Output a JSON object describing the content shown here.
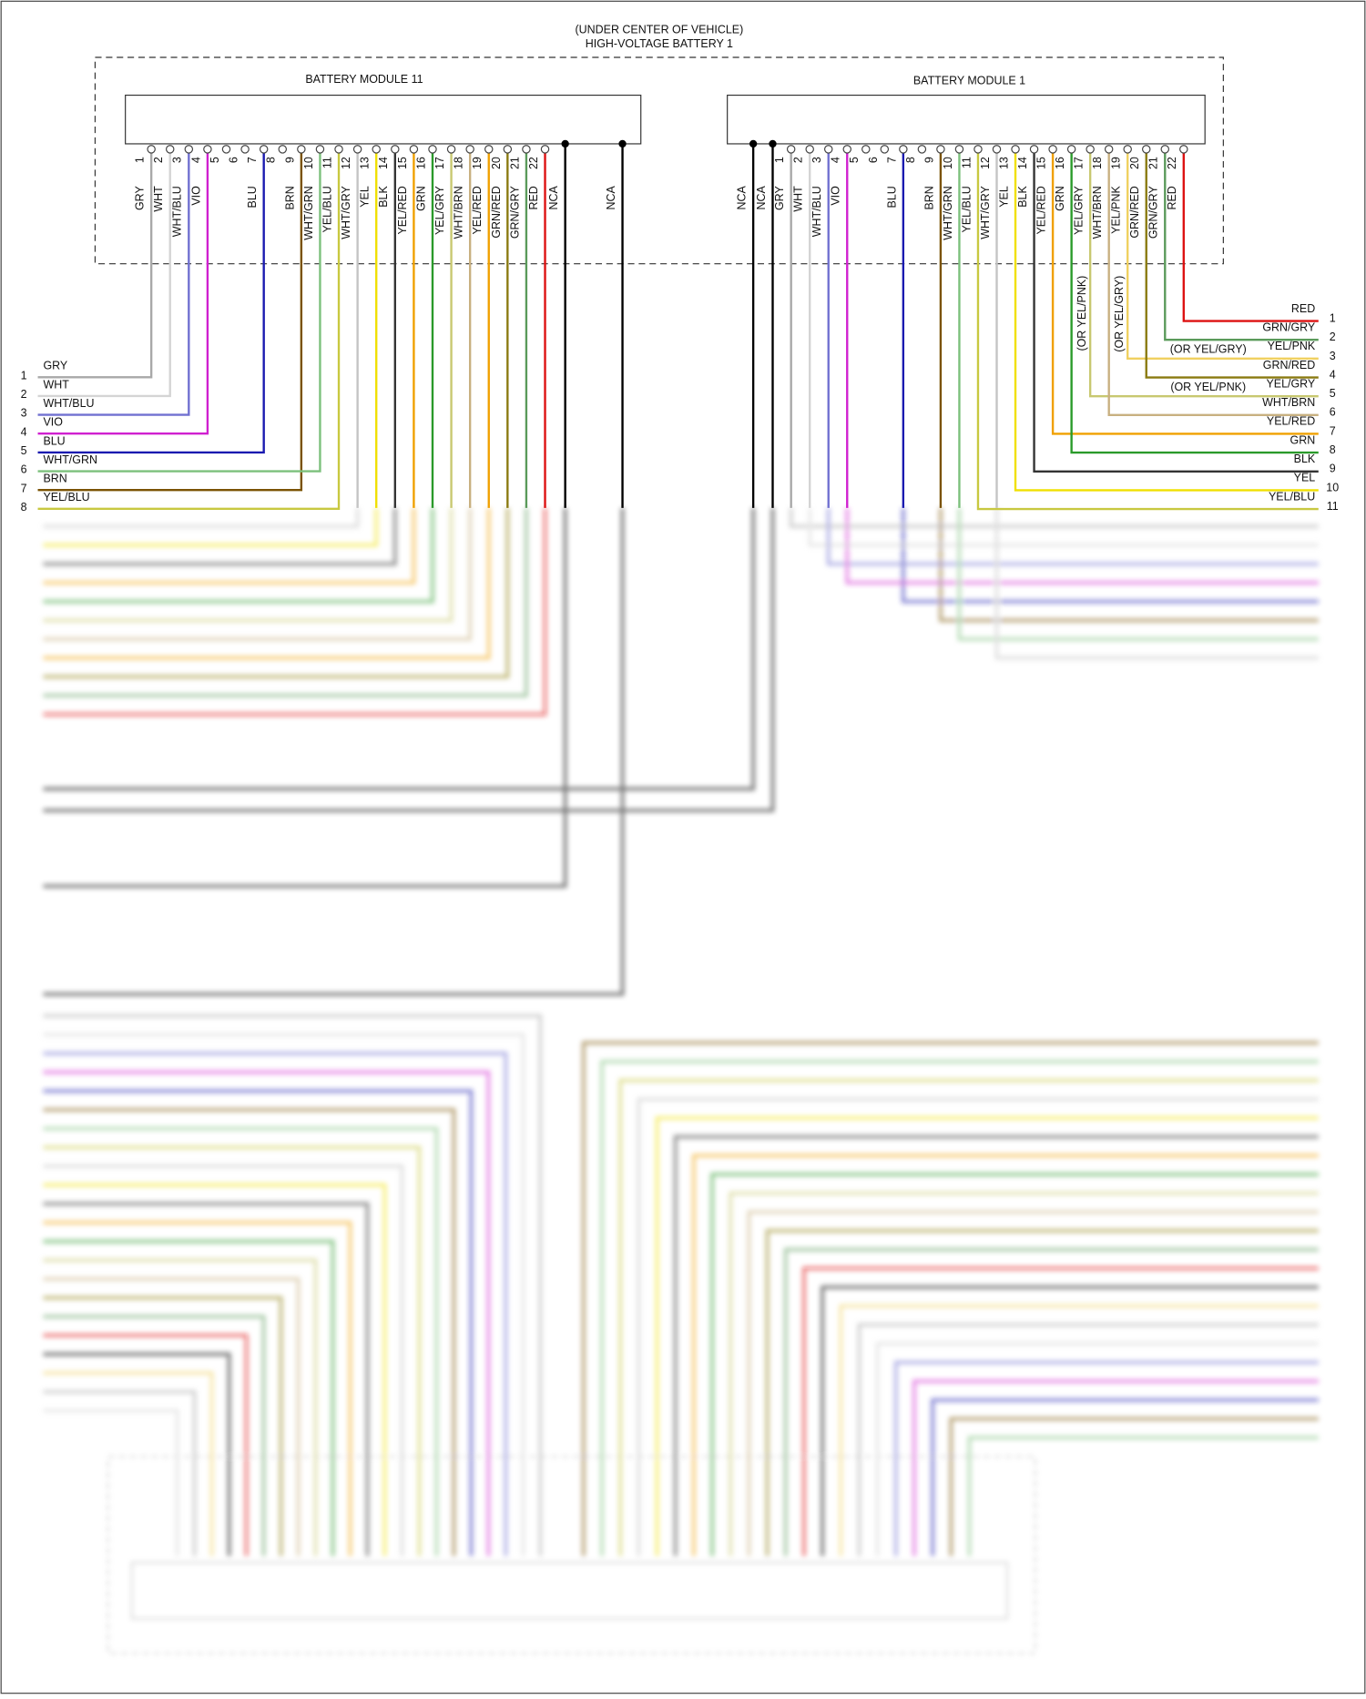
{
  "header": {
    "location": "(UNDER CENTER OF VEHICLE)",
    "title": "HIGH-VOLTAGE BATTERY 1"
  },
  "modules": [
    {
      "title": "BATTERY MODULE 11",
      "pins": [
        {
          "pin": "1",
          "wire": "GRY"
        },
        {
          "pin": "2",
          "wire": "WHT"
        },
        {
          "pin": "3",
          "wire": "WHT/BLU"
        },
        {
          "pin": "4",
          "wire": "VIO"
        },
        {
          "pin": "5"
        },
        {
          "pin": "6"
        },
        {
          "pin": "7",
          "wire": "BLU"
        },
        {
          "pin": "8"
        },
        {
          "pin": "9",
          "wire": "BRN"
        },
        {
          "pin": "10",
          "wire": "WHT/GRN"
        },
        {
          "pin": "11",
          "wire": "YEL/BLU"
        },
        {
          "pin": "12",
          "wire": "WHT/GRY"
        },
        {
          "pin": "13",
          "wire": "YEL"
        },
        {
          "pin": "14",
          "wire": "BLK"
        },
        {
          "pin": "15",
          "wire": "YEL/RED"
        },
        {
          "pin": "16",
          "wire": "GRN"
        },
        {
          "pin": "17",
          "wire": "YEL/GRY"
        },
        {
          "pin": "18",
          "wire": "WHT/BRN"
        },
        {
          "pin": "19",
          "wire": "YEL/RED"
        },
        {
          "pin": "20",
          "wire": "GRN/RED"
        },
        {
          "pin": "21",
          "wire": "GRN/GRY"
        },
        {
          "pin": "22",
          "wire": "RED"
        },
        {
          "wire": "NCA"
        },
        {
          "wire": "NCA"
        }
      ]
    },
    {
      "title": "BATTERY MODULE 1",
      "pins": [
        {
          "wire": "NCA"
        },
        {
          "wire": "NCA"
        },
        {
          "pin": "1",
          "wire": "GRY"
        },
        {
          "pin": "2",
          "wire": "WHT"
        },
        {
          "pin": "3",
          "wire": "WHT/BLU"
        },
        {
          "pin": "4",
          "wire": "VIO"
        },
        {
          "pin": "5"
        },
        {
          "pin": "6"
        },
        {
          "pin": "7",
          "wire": "BLU"
        },
        {
          "pin": "8"
        },
        {
          "pin": "9",
          "wire": "BRN"
        },
        {
          "pin": "10",
          "wire": "WHT/GRN"
        },
        {
          "pin": "11",
          "wire": "YEL/BLU"
        },
        {
          "pin": "12",
          "wire": "WHT/GRY"
        },
        {
          "pin": "13",
          "wire": "YEL"
        },
        {
          "pin": "14",
          "wire": "BLK"
        },
        {
          "pin": "15",
          "wire": "YEL/RED"
        },
        {
          "pin": "16",
          "wire": "GRN"
        },
        {
          "pin": "17",
          "wire": "YEL/GRY",
          "alt": "(OR YEL/PNK)"
        },
        {
          "pin": "18",
          "wire": "WHT/BRN"
        },
        {
          "pin": "19",
          "wire": "YEL/PNK",
          "alt": "(OR YEL/GRY)"
        },
        {
          "pin": "20",
          "wire": "GRN/RED"
        },
        {
          "pin": "21",
          "wire": "GRN/GRY"
        },
        {
          "pin": "22",
          "wire": "RED"
        }
      ]
    }
  ],
  "left_connector": [
    {
      "num": "1",
      "wire": "GRY"
    },
    {
      "num": "2",
      "wire": "WHT"
    },
    {
      "num": "3",
      "wire": "WHT/BLU"
    },
    {
      "num": "4",
      "wire": "VIO"
    },
    {
      "num": "5",
      "wire": "BLU"
    },
    {
      "num": "6",
      "wire": "WHT/GRN"
    },
    {
      "num": "7",
      "wire": "BRN"
    },
    {
      "num": "8",
      "wire": "YEL/BLU"
    }
  ],
  "right_connector": [
    {
      "num": "1",
      "wire": "RED"
    },
    {
      "num": "2",
      "wire": "GRN/GRY"
    },
    {
      "num": "3",
      "wire": "YEL/PNK",
      "alt": "(OR YEL/GRY)"
    },
    {
      "num": "4",
      "wire": "GRN/RED"
    },
    {
      "num": "5",
      "wire": "YEL/GRY",
      "alt": "(OR YEL/PNK)"
    },
    {
      "num": "6",
      "wire": "WHT/BRN"
    },
    {
      "num": "7",
      "wire": "YEL/RED"
    },
    {
      "num": "8",
      "wire": "GRN"
    },
    {
      "num": "9",
      "wire": "BLK"
    },
    {
      "num": "10",
      "wire": "YEL"
    },
    {
      "num": "11",
      "wire": "YEL/BLU"
    }
  ],
  "wire_colors": {
    "GRY": "#a8a8a8",
    "WHT": "#d4d4d4",
    "WHT/BLU": "#7070d0",
    "VIO": "#d020d0",
    "BLU": "#1a1ab0",
    "BRN": "#7a5200",
    "WHT/GRN": "#7cc07c",
    "YEL/BLU": "#c8c840",
    "WHT/GRY": "#c4c4c4",
    "YEL": "#f0e000",
    "BLK": "#333333",
    "YEL/RED": "#f0a000",
    "GRN": "#2a9a2a",
    "YEL/GRY": "#c8c870",
    "WHT/BRN": "#c8b080",
    "GRN/RED": "#8a7a10",
    "GRN/GRY": "#5a9a5a",
    "RED": "#dd1111",
    "NCA": "#000000",
    "YEL/PNK": "#f0d060"
  }
}
